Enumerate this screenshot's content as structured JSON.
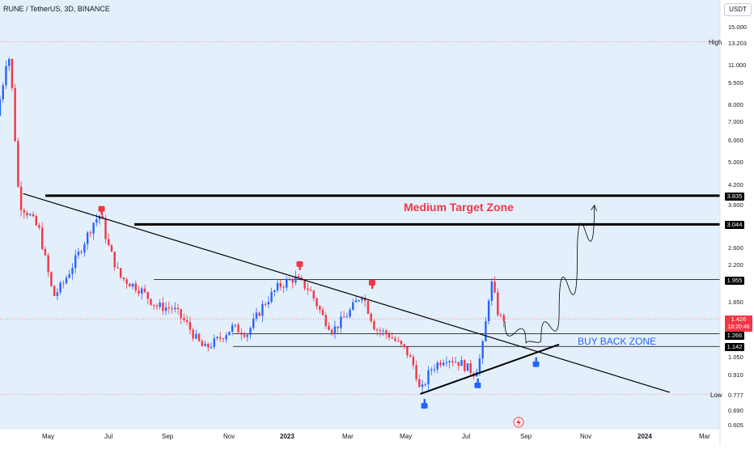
{
  "header": {
    "symbol_title": "RUNE / TetherUS, 3D, BINANCE",
    "currency": "USDT"
  },
  "annotations": {
    "medium_target_zone": "Medium Target Zone",
    "buy_back_zone": "BUY BACK ZONE",
    "high_label": "High",
    "low_label": "Low"
  },
  "price_axis": {
    "ticks": [
      "15.000",
      "11.000",
      "9.500",
      "8.000",
      "7.000",
      "6.000",
      "5.000",
      "4.200",
      "3.600",
      "2.600",
      "2.200",
      "1.650",
      "1.050",
      "0.910",
      "0.690",
      "0.605"
    ],
    "high_value": "13.203",
    "low_value": "0.777",
    "levels": [
      "3.835",
      "3.044",
      "1.955",
      "1.266",
      "1.142"
    ],
    "last_price": "1.426",
    "countdown": "18:20:48"
  },
  "time_axis": [
    "May",
    "Jul",
    "Sep",
    "Nov",
    "2023",
    "Mar",
    "May",
    "Jul",
    "Sep",
    "Nov",
    "2024",
    "Mar"
  ],
  "colors": {
    "up": "#2962ff",
    "down": "#f23645",
    "line": "#000000",
    "zone_target": "#f23645",
    "zone_buy": "#2962ff"
  },
  "chart_data": {
    "type": "candlestick",
    "title": "RUNE / TetherUS, 3D, BINANCE",
    "y_scale": "log",
    "ylim": [
      0.6,
      16.5
    ],
    "x_range": [
      "2022-04-20",
      "2024-04-05"
    ],
    "horizontal_levels": [
      3.835,
      3.044,
      1.955,
      1.266,
      1.142
    ],
    "high": 13.203,
    "low": 0.777,
    "last_price": 1.426,
    "anchors": [
      [
        "2022-04-20",
        7.3
      ],
      [
        "2022-04-26",
        9.5
      ],
      [
        "2022-05-01",
        12.6
      ],
      [
        "2022-05-05",
        9.0
      ],
      [
        "2022-05-12",
        3.6
      ],
      [
        "2022-05-22",
        3.3
      ],
      [
        "2022-06-01",
        2.9
      ],
      [
        "2022-06-15",
        1.7
      ],
      [
        "2022-06-25",
        1.9
      ],
      [
        "2022-07-10",
        2.4
      ],
      [
        "2022-07-25",
        3.1
      ],
      [
        "2022-08-01",
        3.3
      ],
      [
        "2022-08-08",
        2.6
      ],
      [
        "2022-08-20",
        2.0
      ],
      [
        "2022-09-10",
        1.8
      ],
      [
        "2022-09-25",
        1.58
      ],
      [
        "2022-10-12",
        1.55
      ],
      [
        "2022-10-25",
        1.38
      ],
      [
        "2022-11-05",
        1.2
      ],
      [
        "2022-11-12",
        1.12
      ],
      [
        "2022-11-25",
        1.2
      ],
      [
        "2022-12-10",
        1.33
      ],
      [
        "2022-12-25",
        1.27
      ],
      [
        "2023-01-10",
        1.6
      ],
      [
        "2023-01-25",
        1.85
      ],
      [
        "2023-02-10",
        1.98
      ],
      [
        "2023-02-25",
        1.8
      ],
      [
        "2023-03-10",
        1.45
      ],
      [
        "2023-03-20",
        1.3
      ],
      [
        "2023-04-05",
        1.5
      ],
      [
        "2023-04-18",
        1.75
      ],
      [
        "2023-05-01",
        1.32
      ],
      [
        "2023-05-15",
        1.25
      ],
      [
        "2023-06-01",
        1.1
      ],
      [
        "2023-06-10",
        0.95
      ],
      [
        "2023-06-15",
        0.78
      ],
      [
        "2023-06-25",
        0.95
      ],
      [
        "2023-07-10",
        1.05
      ],
      [
        "2023-07-25",
        1.0
      ],
      [
        "2023-08-08",
        0.92
      ],
      [
        "2023-08-15",
        1.08
      ],
      [
        "2023-08-19",
        1.38
      ],
      [
        "2023-08-24",
        1.95
      ],
      [
        "2023-08-28",
        1.7
      ],
      [
        "2023-09-01",
        1.45
      ],
      [
        "2023-09-04",
        1.426
      ]
    ],
    "trendlines": [
      {
        "from": [
          "2022-05-13",
          3.9
        ],
        "to": [
          "2024-02-15",
          0.79
        ]
      },
      {
        "from": [
          "2023-06-12",
          0.78
        ],
        "to": [
          "2023-10-28",
          1.16
        ]
      }
    ],
    "projection": [
      [
        "2023-09-04",
        1.4
      ],
      [
        "2023-09-25",
        1.17
      ],
      [
        "2023-10-10",
        1.2
      ],
      [
        "2023-10-28",
        1.5
      ],
      [
        "2023-11-15",
        2.3
      ],
      [
        "2023-12-02",
        3.55
      ]
    ],
    "markers_down": [
      [
        "2022-07-30",
        3.35
      ],
      [
        "2023-02-12",
        2.15
      ],
      [
        "2023-04-25",
        1.85
      ]
    ],
    "markers_up": [
      [
        "2023-06-16",
        0.73
      ],
      [
        "2023-08-08",
        0.86
      ],
      [
        "2023-10-05",
        1.02
      ]
    ]
  }
}
